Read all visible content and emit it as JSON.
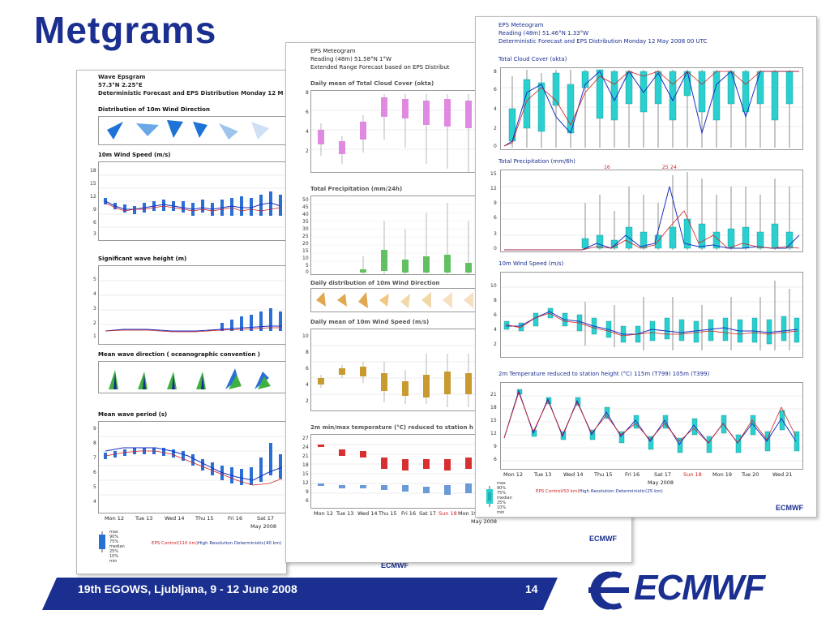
{
  "slide": {
    "title": "Metgrams",
    "footer": "19th EGOWS, Ljubljana, 9 - 12 June 2008",
    "page_number": "14",
    "logo": "ECMWF"
  },
  "wave_panel": {
    "header_line1": "Wave Epsgram",
    "header_line2": "57.3°N 2.25°E",
    "header_line3": "Deterministic Forecast and EPS Distribution Monday 12 M",
    "sections": [
      "Distribution of 10m Wind Direction",
      "10m Wind Speed (m/s)",
      "Significant wave height (m)",
      "Mean wave direction ( oceanographic convention )",
      "Mean wave period (s)"
    ],
    "wind_ticks": [
      "18",
      "15",
      "12",
      "9",
      "6",
      "3"
    ],
    "wave_ticks": [
      "5",
      "4",
      "3",
      "2",
      "1"
    ],
    "period_ticks": [
      "9",
      "8",
      "7",
      "6",
      "5",
      "4"
    ],
    "dates": [
      "Mon 12",
      "Tue 13",
      "Wed 14",
      "Thu 15",
      "Fri 16",
      "Sat 17"
    ],
    "month": "May 2008",
    "legend": [
      "max",
      "90%",
      "75%",
      "median",
      "25%",
      "10%",
      "min"
    ],
    "eps_control": "EPS Control(110 km)",
    "hires": "High Resolution Deterministic(40 km)",
    "logo": "ECMWF"
  },
  "eps_panel": {
    "header_line1": "EPS Meteogram",
    "header_line2": "Reading (48m) 51.58°N 1°W",
    "header_line3": "Extended Range Forecast based on EPS Distribut",
    "sections": [
      "Daily mean of Total Cloud Cover (okta)",
      "Total Precipitation (mm/24h)",
      "Daily distribution of 10m Wind Direction",
      "Daily mean of 10m Wind Speed (m/s)",
      "2m min/max temperature (°C) reduced to station h"
    ],
    "cloud_ticks": [
      "8",
      "6",
      "4",
      "2"
    ],
    "precip_ticks": [
      "50",
      "45",
      "40",
      "35",
      "30",
      "25",
      "20",
      "15",
      "10",
      "5",
      "0"
    ],
    "wind_ticks": [
      "10",
      "8",
      "6",
      "4",
      "2"
    ],
    "temp_ticks": [
      "27",
      "24",
      "21",
      "18",
      "15",
      "12",
      "9",
      "6"
    ],
    "dates": [
      "Mon 12",
      "Tue 13",
      "Wed 14",
      "Thu 15",
      "Fri 16",
      "Sat 17",
      "Sun 18",
      "Mon 19"
    ],
    "month": "May 2008",
    "logo": "ECMWF"
  },
  "meteogram_panel": {
    "header_line1": "EPS Meteogram",
    "header_line2": "Reading (48m) 51.46°N 1.33°W",
    "header_line3": "Deterministic Forecast and EPS Distribution Monday 12 May 2008 00 UTC",
    "sections": [
      "Total Cloud Cover (okta)",
      "Total Precipitation (mm/6h)",
      "10m Wind Speed (m/s)",
      "2m Temperature reduced to station height (°C) 115m (T799) 105m (T399)"
    ],
    "cloud_ticks": [
      "8",
      "6",
      "4",
      "2",
      "0"
    ],
    "precip_ticks": [
      "15",
      "12",
      "9",
      "6",
      "3",
      "0"
    ],
    "precip_labels": [
      "16",
      "25",
      "24"
    ],
    "wind_ticks": [
      "10",
      "8",
      "6",
      "4",
      "2"
    ],
    "temp_ticks": [
      "21",
      "18",
      "15",
      "12",
      "9",
      "6"
    ],
    "dates": [
      "Mon 12",
      "Tue 13",
      "Wed 14",
      "Thu 15",
      "Fri 16",
      "Sat 17",
      "Sun 18",
      "Mon 19",
      "Tue 20",
      "Wed 21"
    ],
    "month": "May 2008",
    "legend": [
      "max",
      "90%",
      "75%",
      "median",
      "25%",
      "10%",
      "min"
    ],
    "eps_control": "EPS Control(50 km)",
    "hires": "High Resolution Deterministic(25 km)",
    "logo": "ECMWF"
  },
  "colors": {
    "title": "#1a2f8f",
    "footer_bar": "#1a2f8f",
    "wave_box": "#2a6fd6",
    "cloud_box_pink": "#e089e0",
    "precip_box_green": "#62c062",
    "wind_box_gold": "#c89a30",
    "temp_box_red": "#d83030",
    "cyan_box": "#2ad0d0",
    "deterministic_line": "#1a2fbf",
    "control_line": "#d02020"
  }
}
